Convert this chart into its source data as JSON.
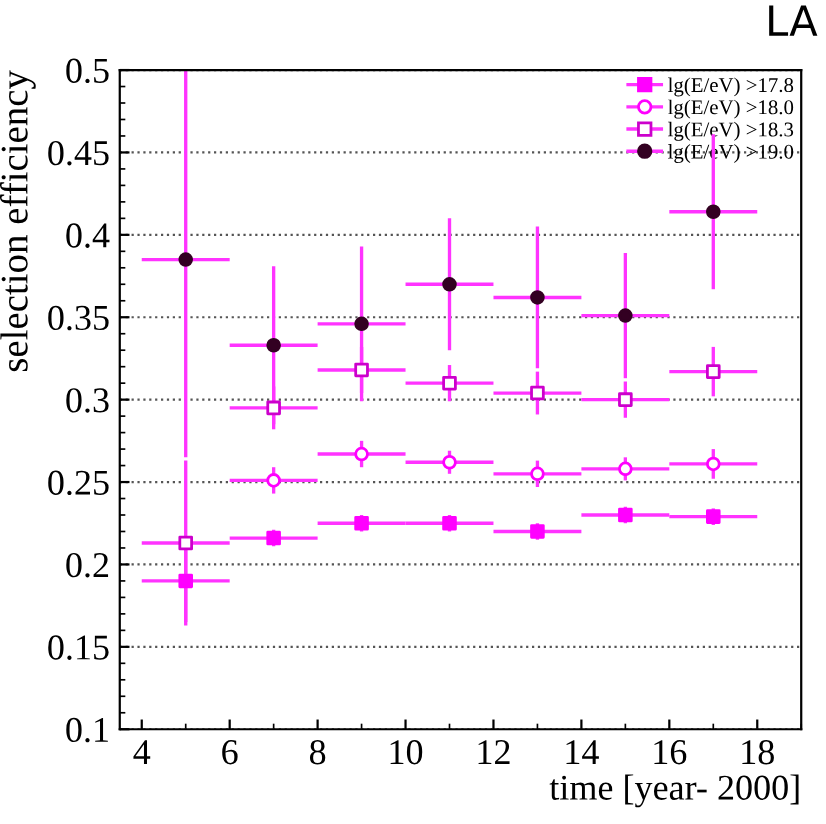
{
  "chart_data": {
    "type": "scatter",
    "xlabel": "time [year- 2000]",
    "ylabel": "selection efficiency",
    "annotations": [
      "LA"
    ],
    "x": [
      5,
      7,
      9,
      11,
      13,
      15,
      17
    ],
    "series": [
      {
        "name": "lg(E/eV) >17.8",
        "color": "#ff00ff",
        "marker": "square",
        "values": [
          0.19,
          0.216,
          0.225,
          0.225,
          0.22,
          0.23,
          0.229
        ],
        "errors": [
          0.025,
          0.005,
          0.005,
          0.005,
          0.005,
          0.005,
          0.005
        ],
        "xerrors": [
          1,
          1,
          1,
          1,
          1,
          1,
          1
        ]
      },
      {
        "name": "lg(E/eV) >18.0",
        "color": "#ff00ff",
        "marker": "circle",
        "values": [
          null,
          0.251,
          0.267,
          0.262,
          0.255,
          0.258,
          0.261
        ],
        "errors": [
          null,
          0.008,
          0.008,
          0.007,
          0.008,
          0.007,
          0.009
        ],
        "xerrors": [
          null,
          1,
          1,
          1,
          1,
          1,
          1
        ]
      },
      {
        "name": "lg(E/eV) >18.3",
        "color": "#cc00cc",
        "marker": "square",
        "values": [
          0.213,
          0.295,
          0.318,
          0.31,
          0.304,
          0.3,
          0.317
        ],
        "errors": [
          0.05,
          0.013,
          0.014,
          0.011,
          0.013,
          0.011,
          0.015
        ],
        "xerrors": [
          1,
          1,
          1,
          1,
          1,
          1,
          1
        ]
      },
      {
        "name": "lg(E/eV) >19.0",
        "color": "#330022",
        "marker": "circle",
        "values": [
          0.385,
          0.333,
          0.346,
          0.37,
          0.362,
          0.351,
          0.414
        ],
        "errors": [
          0.12,
          0.048,
          0.047,
          0.04,
          0.043,
          0.038,
          0.047
        ],
        "xerrors": [
          1,
          1,
          1,
          1,
          1,
          1,
          1
        ]
      }
    ],
    "xlim": [
      3.5,
      19
    ],
    "ylim": [
      0.1,
      0.5
    ],
    "xticks": [
      4,
      6,
      8,
      10,
      12,
      14,
      16,
      18
    ],
    "yticks": [
      0.1,
      0.15,
      0.2,
      0.25,
      0.3,
      0.35,
      0.4,
      0.45,
      0.5
    ],
    "grid": "y",
    "legend": "top right"
  }
}
